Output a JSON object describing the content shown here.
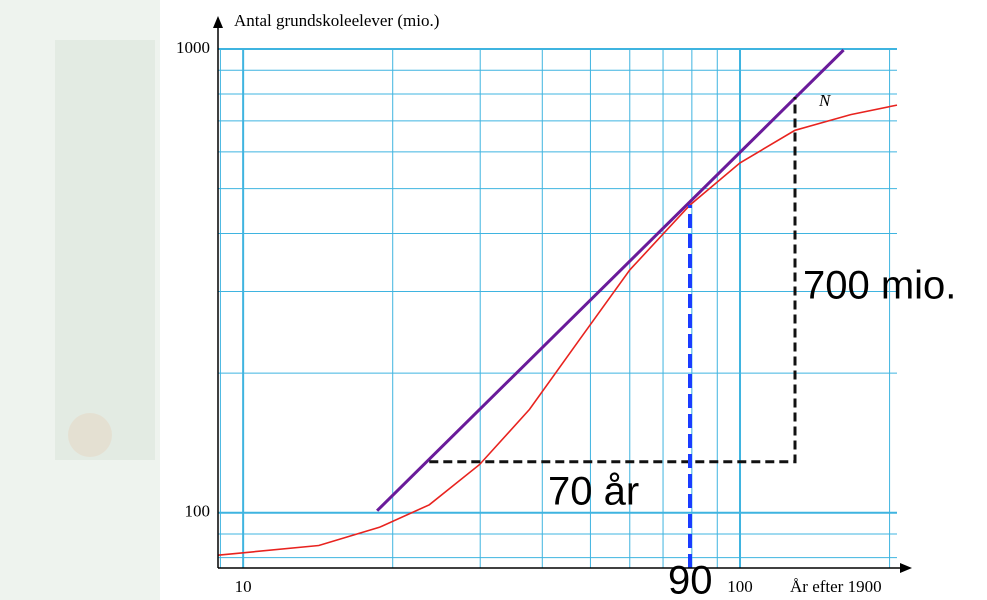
{
  "chart_data": {
    "type": "line",
    "x_label": "År efter 1900",
    "y_label": "Antal grundskoleelever (mio.)",
    "x_log": true,
    "y_log": true,
    "grid": true,
    "grid_color": "#3fb4e0",
    "xlim": [
      8.9,
      207
    ],
    "ylim": [
      76,
      1000
    ],
    "xticks": [
      10,
      100
    ],
    "yticks": [
      100,
      1000
    ],
    "x_minor_ticks": [
      9,
      20,
      30,
      40,
      50,
      60,
      70,
      80,
      90,
      200
    ],
    "y_minor_ticks": [
      80,
      90,
      200,
      300,
      400,
      500,
      600,
      700,
      800,
      900
    ],
    "series": [
      {
        "name": "N",
        "color": "#e8231f",
        "x": [
          8.9,
          14.2,
          18.8,
          23.7,
          29.9,
          37.7,
          47.5,
          60,
          79.3,
          100,
          129,
          167,
          207
        ],
        "values": [
          81,
          85,
          93,
          104,
          127,
          167,
          236,
          334,
          461,
          568,
          668,
          722,
          757
        ]
      },
      {
        "name": null,
        "color": "#6a1b9a",
        "x": [
          18.6,
          161.6
        ],
        "values": [
          101,
          995
        ]
      },
      {
        "name": null,
        "color": "#111111",
        "dashed": true,
        "x": [
          23.7,
          129,
          129
        ],
        "values": [
          128.8,
          128.8,
          788
        ]
      },
      {
        "name": null,
        "color": "#1a3cff",
        "dashed": true,
        "x": [
          79.3,
          79.3
        ],
        "values": [
          76,
          461
        ]
      }
    ],
    "annotations": [
      "700 mio.",
      "70 år",
      "90"
    ]
  }
}
